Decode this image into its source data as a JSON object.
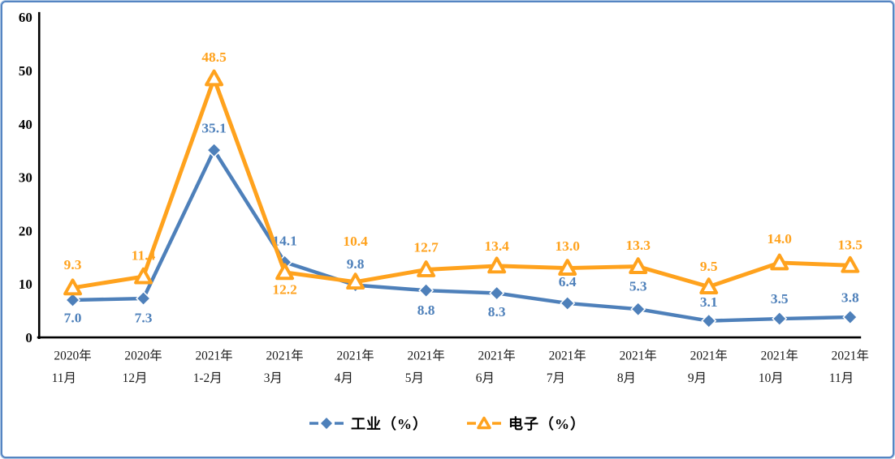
{
  "chart_data": {
    "type": "line",
    "title": "",
    "categories": [
      "2020年11月",
      "2020年12月",
      "2021年1-2月",
      "2021年3月",
      "2021年4月",
      "2021年5月",
      "2021年6月",
      "2021年7月",
      "2021年8月",
      "2021年9月",
      "2021年10月",
      "2021年11月"
    ],
    "yticks": [
      0,
      10,
      20,
      30,
      40,
      50,
      60
    ],
    "ylim": [
      0,
      60
    ],
    "grid": false,
    "legend_position": "bottom-center",
    "axis_color": "#000000",
    "series": [
      {
        "name": "工业（%）",
        "marker": "diamond",
        "color": "#4e80ba",
        "values": [
          7.0,
          7.3,
          35.1,
          14.1,
          9.8,
          8.8,
          8.3,
          6.4,
          5.3,
          3.1,
          3.5,
          3.8
        ],
        "labels": [
          "7.0",
          "7.3",
          "35.1",
          "14.1",
          "9.8",
          "8.8",
          "8.3",
          "6.4",
          "5.3",
          "3.1",
          "3.5",
          "3.8"
        ],
        "label_dy": [
          28,
          30,
          -22,
          -21,
          -21,
          30,
          29,
          -21,
          -23,
          -18,
          -19,
          -19
        ]
      },
      {
        "name": "电子（%）",
        "marker": "triangle",
        "color": "#ffa21d",
        "values": [
          9.3,
          11.4,
          48.5,
          12.2,
          10.4,
          12.7,
          13.4,
          13.0,
          13.3,
          9.5,
          14.0,
          13.5
        ],
        "labels": [
          "9.3",
          "11.4",
          "48.5",
          "12.2",
          "10.4",
          "12.7",
          "13.4",
          "13.0",
          "13.3",
          "9.5",
          "14.0",
          "13.5"
        ],
        "label_dy": [
          -23,
          -21,
          -21,
          27,
          -45,
          -22,
          -19,
          -22,
          -21,
          -20,
          -24,
          -20
        ]
      }
    ]
  }
}
